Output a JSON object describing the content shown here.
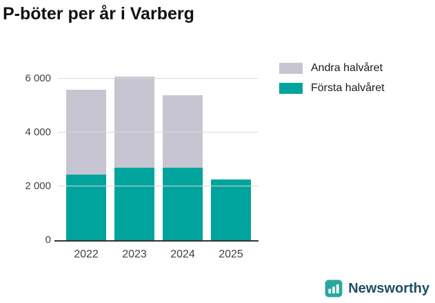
{
  "title": "P-böter per år i Varberg",
  "legend": {
    "items": [
      {
        "label": "Andra halvåret",
        "color": "#c7c5d1"
      },
      {
        "label": "Första halvåret",
        "color": "#00a49c"
      }
    ]
  },
  "chart_data": {
    "type": "bar",
    "stacked": true,
    "title": "P-böter per år i Varberg",
    "categories": [
      "2022",
      "2023",
      "2024",
      "2025"
    ],
    "series": [
      {
        "name": "Första halvåret",
        "color": "#00a49c",
        "values": [
          2450,
          2700,
          2700,
          2250
        ]
      },
      {
        "name": "Andra halvåret",
        "color": "#c7c5d1",
        "values": [
          3150,
          3400,
          2700,
          0
        ]
      }
    ],
    "totals": [
      5600,
      6100,
      5400,
      2250
    ],
    "xlabel": "",
    "ylabel": "",
    "ylim": [
      0,
      6500
    ],
    "yticks": [
      {
        "value": 0,
        "label": "0"
      },
      {
        "value": 2000,
        "label": "2 000"
      },
      {
        "value": 4000,
        "label": "4 000"
      },
      {
        "value": 6000,
        "label": "6 000"
      }
    ],
    "grid": true,
    "legend_position": "top-right"
  },
  "branding": {
    "logo_text": "Newsworthy",
    "icon": "bar-chart-logo-icon",
    "icon_color": "#2aa79d",
    "text_color": "#1d4f62"
  }
}
